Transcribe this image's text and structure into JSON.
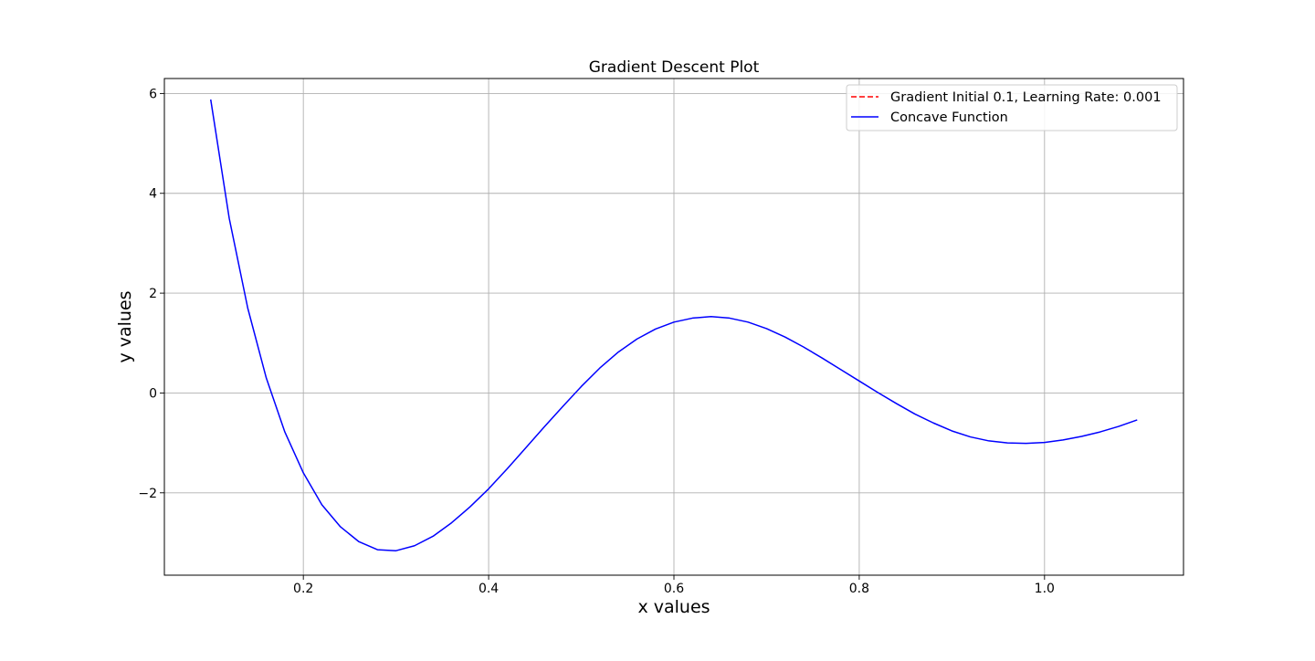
{
  "chart_data": {
    "type": "line",
    "title": "Gradient Descent Plot",
    "xlabel": "x values",
    "ylabel": "y values",
    "xlim": [
      0.05,
      1.15
    ],
    "ylim": [
      -3.65,
      6.3
    ],
    "xticks": [
      0.2,
      0.4,
      0.6,
      0.8,
      1.0
    ],
    "xtick_labels": [
      "0.2",
      "0.4",
      "0.6",
      "0.8",
      "1.0"
    ],
    "yticks": [
      -2,
      0,
      2,
      4,
      6
    ],
    "ytick_labels": [
      "−2",
      "0",
      "2",
      "4",
      "6"
    ],
    "grid": true,
    "legend_position": "top-right",
    "series": [
      {
        "name": "Gradient Initial 0.1, Learning Rate: 0.001",
        "color": "#ff0000",
        "style": "dashed",
        "x": [],
        "y": []
      },
      {
        "name": "Concave Function",
        "color": "#0000ff",
        "style": "solid",
        "x": [
          0.1,
          0.12,
          0.14,
          0.16,
          0.18,
          0.2,
          0.22,
          0.24,
          0.26,
          0.28,
          0.3,
          0.32,
          0.34,
          0.36,
          0.38,
          0.4,
          0.42,
          0.44,
          0.46,
          0.48,
          0.5,
          0.52,
          0.54,
          0.56,
          0.58,
          0.6,
          0.62,
          0.64,
          0.66,
          0.68,
          0.7,
          0.72,
          0.74,
          0.76,
          0.78,
          0.8,
          0.82,
          0.84,
          0.86,
          0.88,
          0.9,
          0.92,
          0.94,
          0.96,
          0.98,
          1.0,
          1.02,
          1.04,
          1.06,
          1.08,
          1.1
        ],
        "y": [
          5.88,
          3.5,
          1.7,
          0.3,
          -0.78,
          -1.6,
          -2.24,
          -2.68,
          -2.98,
          -3.14,
          -3.16,
          -3.06,
          -2.87,
          -2.6,
          -2.28,
          -1.92,
          -1.52,
          -1.1,
          -0.68,
          -0.27,
          0.13,
          0.5,
          0.82,
          1.08,
          1.28,
          1.42,
          1.5,
          1.53,
          1.5,
          1.42,
          1.29,
          1.12,
          0.92,
          0.7,
          0.47,
          0.24,
          0.01,
          -0.21,
          -0.42,
          -0.6,
          -0.76,
          -0.88,
          -0.96,
          -1.0,
          -1.01,
          -0.99,
          -0.94,
          -0.87,
          -0.78,
          -0.67,
          -0.54
        ]
      }
    ]
  }
}
